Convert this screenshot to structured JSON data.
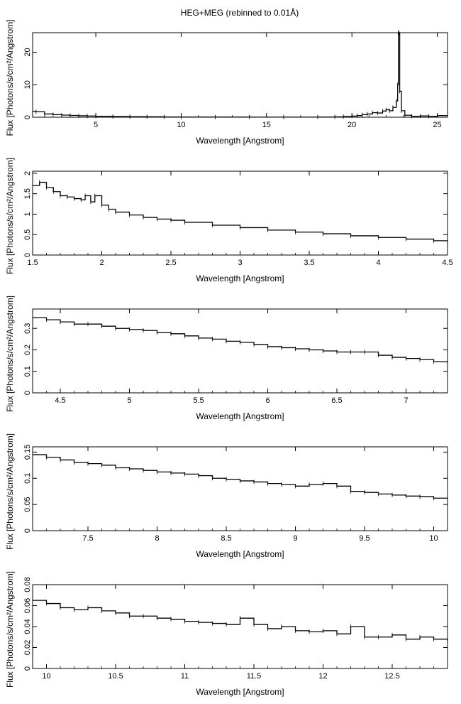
{
  "figure": {
    "title": "HEG+MEG (rebinned to 0.01Å)"
  },
  "chart_data": [
    {
      "type": "line",
      "xlabel": "Wavelength [Angstrom]",
      "ylabel": "Flux [Photons/s/cm²/Angstrom]",
      "xlim": [
        1.3,
        25.6
      ],
      "ylim": [
        0,
        26
      ],
      "xticks": [
        5,
        10,
        15,
        20,
        25
      ],
      "xtick_labels": [
        "5",
        "10",
        "15",
        "20",
        "25"
      ],
      "yticks": [
        0,
        10,
        20
      ],
      "ytick_labels": [
        "0",
        "10",
        "20"
      ],
      "series": [
        {
          "x": [
            1.3,
            1.5,
            2,
            2.5,
            3,
            3.5,
            4,
            4.5,
            5,
            6,
            7,
            8,
            9,
            10,
            12,
            14,
            16,
            18,
            19,
            19.5,
            20,
            20.3,
            20.6,
            20.9,
            21.2,
            21.5,
            21.8,
            22.0,
            22.2,
            22.4,
            22.6,
            22.68,
            22.72,
            22.76,
            22.8,
            22.9,
            23.1,
            23.5,
            24,
            24.5,
            25,
            25.6
          ],
          "y": [
            1.8,
            1.7,
            1.0,
            0.8,
            0.65,
            0.55,
            0.45,
            0.38,
            0.3,
            0.22,
            0.17,
            0.12,
            0.09,
            0.06,
            0.04,
            0.03,
            0.03,
            0.05,
            0.1,
            0.2,
            0.35,
            0.5,
            0.8,
            1.0,
            1.4,
            1.3,
            1.9,
            2.3,
            2.0,
            3.0,
            5.0,
            10.0,
            26.0,
            26.0,
            8.0,
            2.0,
            0.6,
            0.3,
            0.4,
            0.3,
            0.5,
            0.6
          ]
        }
      ]
    },
    {
      "type": "line",
      "xlabel": "Wavelength [Angstrom]",
      "ylabel": "Flux [Photons/s/cm²/Angstrom]",
      "xlim": [
        1.5,
        4.5
      ],
      "ylim": [
        0,
        2.05
      ],
      "xticks": [
        1.5,
        2,
        2.5,
        3,
        3.5,
        4,
        4.5
      ],
      "xtick_labels": [
        "1.5",
        "2",
        "2.5",
        "3",
        "3.5",
        "4",
        "4.5"
      ],
      "yticks": [
        0,
        0.5,
        1,
        1.5,
        2
      ],
      "ytick_labels": [
        "0",
        "0.5",
        "1",
        "1.5",
        "2"
      ],
      "series": [
        {
          "x": [
            1.5,
            1.55,
            1.6,
            1.65,
            1.7,
            1.75,
            1.8,
            1.85,
            1.88,
            1.92,
            1.95,
            2.0,
            2.05,
            2.1,
            2.2,
            2.3,
            2.4,
            2.5,
            2.6,
            2.8,
            3.0,
            3.2,
            3.4,
            3.6,
            3.8,
            4.0,
            4.2,
            4.4,
            4.5
          ],
          "y": [
            1.7,
            1.78,
            1.65,
            1.55,
            1.45,
            1.42,
            1.38,
            1.35,
            1.45,
            1.3,
            1.45,
            1.22,
            1.12,
            1.05,
            0.98,
            0.92,
            0.88,
            0.85,
            0.8,
            0.73,
            0.67,
            0.61,
            0.56,
            0.52,
            0.47,
            0.43,
            0.39,
            0.35,
            0.32
          ]
        }
      ]
    },
    {
      "type": "line",
      "xlabel": "Wavelength [Angstrom]",
      "ylabel": "Flux [Photons/s/cm²/Angstrom]",
      "xlim": [
        4.3,
        7.3
      ],
      "ylim": [
        0,
        0.39
      ],
      "xticks": [
        4.5,
        5,
        5.5,
        6,
        6.5,
        7
      ],
      "xtick_labels": [
        "4.5",
        "5",
        "5.5",
        "6",
        "6.5",
        "7"
      ],
      "yticks": [
        0,
        0.1,
        0.2,
        0.3
      ],
      "ytick_labels": [
        "0",
        "0.1",
        "0.2",
        "0.3"
      ],
      "series": [
        {
          "x": [
            4.3,
            4.4,
            4.5,
            4.6,
            4.7,
            4.8,
            4.9,
            5.0,
            5.1,
            5.2,
            5.3,
            5.4,
            5.5,
            5.6,
            5.7,
            5.8,
            5.9,
            6.0,
            6.1,
            6.2,
            6.3,
            6.4,
            6.5,
            6.6,
            6.7,
            6.8,
            6.9,
            7.0,
            7.1,
            7.2,
            7.3
          ],
          "y": [
            0.35,
            0.34,
            0.33,
            0.32,
            0.32,
            0.31,
            0.3,
            0.295,
            0.29,
            0.28,
            0.275,
            0.265,
            0.255,
            0.25,
            0.24,
            0.235,
            0.225,
            0.215,
            0.21,
            0.205,
            0.2,
            0.195,
            0.19,
            0.19,
            0.19,
            0.175,
            0.165,
            0.16,
            0.155,
            0.145,
            0.14
          ]
        }
      ]
    },
    {
      "type": "line",
      "xlabel": "Wavelength [Angstrom]",
      "ylabel": "Flux [Photons/s/cm²/Angstrom]",
      "xlim": [
        7.1,
        10.1
      ],
      "ylim": [
        0,
        0.16
      ],
      "xticks": [
        7.5,
        8,
        8.5,
        9,
        9.5,
        10
      ],
      "xtick_labels": [
        "7.5",
        "8",
        "8.5",
        "9",
        "9.5",
        "10"
      ],
      "yticks": [
        0,
        0.05,
        0.1,
        0.15
      ],
      "ytick_labels": [
        "0",
        "0.05",
        "0.1",
        "0.15"
      ],
      "series": [
        {
          "x": [
            7.1,
            7.2,
            7.3,
            7.4,
            7.5,
            7.6,
            7.7,
            7.8,
            7.9,
            8.0,
            8.1,
            8.2,
            8.3,
            8.4,
            8.5,
            8.6,
            8.7,
            8.8,
            8.9,
            9.0,
            9.1,
            9.2,
            9.3,
            9.4,
            9.5,
            9.6,
            9.7,
            9.8,
            9.9,
            10.0,
            10.1
          ],
          "y": [
            0.145,
            0.14,
            0.135,
            0.13,
            0.128,
            0.125,
            0.12,
            0.118,
            0.115,
            0.112,
            0.11,
            0.108,
            0.105,
            0.1,
            0.098,
            0.095,
            0.093,
            0.09,
            0.088,
            0.085,
            0.088,
            0.09,
            0.085,
            0.075,
            0.073,
            0.07,
            0.068,
            0.066,
            0.065,
            0.062,
            0.06
          ]
        }
      ]
    },
    {
      "type": "line",
      "xlabel": "Wavelength [Angstrom]",
      "ylabel": "Flux [Photons/s/cm²/Angstrom]",
      "xlim": [
        9.9,
        12.9
      ],
      "ylim": [
        0,
        0.08
      ],
      "xticks": [
        10,
        10.5,
        11,
        11.5,
        12,
        12.5
      ],
      "xtick_labels": [
        "10",
        "10.5",
        "11",
        "11.5",
        "12",
        "12.5"
      ],
      "yticks": [
        0,
        0.02,
        0.04,
        0.06,
        0.08
      ],
      "ytick_labels": [
        "0",
        "0.02",
        "0.04",
        "0.06",
        "0.08"
      ],
      "series": [
        {
          "x": [
            9.9,
            10.0,
            10.1,
            10.2,
            10.3,
            10.4,
            10.5,
            10.6,
            10.7,
            10.8,
            10.9,
            11.0,
            11.1,
            11.2,
            11.3,
            11.4,
            11.5,
            11.6,
            11.7,
            11.8,
            11.9,
            12.0,
            12.1,
            12.2,
            12.3,
            12.4,
            12.5,
            12.6,
            12.7,
            12.8,
            12.9
          ],
          "y": [
            0.065,
            0.062,
            0.058,
            0.056,
            0.058,
            0.055,
            0.053,
            0.05,
            0.05,
            0.048,
            0.047,
            0.045,
            0.044,
            0.043,
            0.042,
            0.048,
            0.042,
            0.038,
            0.04,
            0.036,
            0.035,
            0.036,
            0.033,
            0.04,
            0.03,
            0.03,
            0.032,
            0.028,
            0.03,
            0.028,
            0.026
          ]
        }
      ]
    }
  ]
}
